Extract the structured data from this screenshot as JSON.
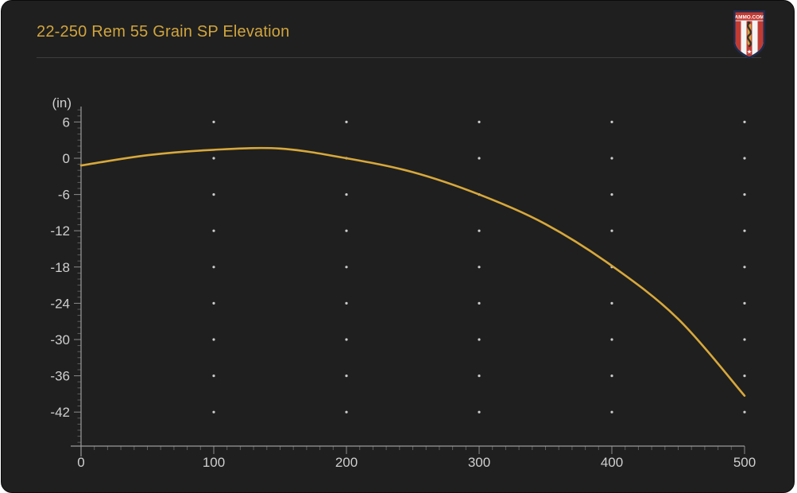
{
  "header": {
    "title": "22-250 Rem 55 Grain SP Elevation",
    "logo_text": "AMMO.COM"
  },
  "colors": {
    "page_bg": "#ffffff",
    "card_bg": "#1f1f1f",
    "title": "#d1a53d",
    "curve": "#d7a83b",
    "axis": "#9b9b9b",
    "major_tick": "#8c8c8c",
    "minor_tick": "#5e5e5e",
    "tick_label": "#cfcfcf",
    "grid_dot": "#cccccc",
    "divider": "#3d3d3d",
    "logo_red": "#c13b33",
    "logo_navy": "#1e2c4e",
    "logo_white": "#f4f4f4",
    "logo_gold": "#d4a33c",
    "logo_snake": "#3a3128"
  },
  "chart_data": {
    "type": "line",
    "title": "22-250 Rem 55 Grain SP Elevation",
    "xlabel": "",
    "ylabel": "(in)",
    "x": [
      0,
      50,
      100,
      150,
      200,
      250,
      300,
      350,
      400,
      450,
      500
    ],
    "series": [
      {
        "name": "Elevation (in)",
        "values": [
          -1.2,
          0.5,
          1.4,
          1.6,
          0.0,
          -2.3,
          -6.0,
          -10.9,
          -17.8,
          -26.6,
          -39.3
        ]
      }
    ],
    "xlim": [
      0,
      500
    ],
    "ylim": [
      -47.6,
      8.5
    ],
    "x_ticks_major": [
      0,
      100,
      200,
      300,
      400,
      500
    ],
    "x_minor_step": 10,
    "y_ticks_major": [
      6,
      0,
      -6,
      -12,
      -18,
      -24,
      -30,
      -36,
      -42
    ],
    "y_minor_step": 1,
    "grid": "dots at major intersections",
    "legend": false,
    "line_color": "#d7a83b"
  }
}
